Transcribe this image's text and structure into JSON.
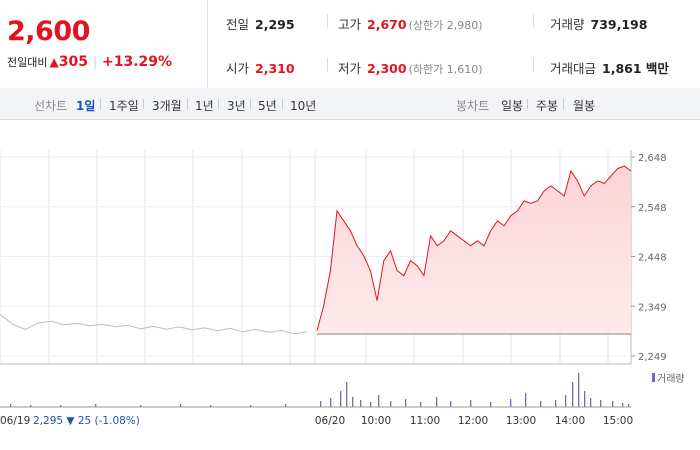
{
  "summary": {
    "price": "2,600",
    "change_label": "전일대비",
    "change_arrow": "▲",
    "change_value": "305",
    "change_pct": "+13.29%",
    "prev_close": {
      "label": "전일",
      "value": "2,295"
    },
    "high": {
      "label": "고가",
      "value": "2,670",
      "limit": "(상한가 2,980)"
    },
    "volume": {
      "label": "거래량",
      "value": "739,198"
    },
    "open": {
      "label": "시가",
      "value": "2,310"
    },
    "low": {
      "label": "저가",
      "value": "2,300",
      "limit": "(하한가 1,610)"
    },
    "amount": {
      "label": "거래대금",
      "value": "1,861 백만"
    }
  },
  "tabs": {
    "line_label": "선차트",
    "line_tabs": [
      "1일",
      "1주일",
      "3개월",
      "1년",
      "3년",
      "5년",
      "10년"
    ],
    "active": "1일",
    "candle_label": "봉차트",
    "candle_tabs": [
      "일봉",
      "주봉",
      "월봉"
    ]
  },
  "legend": {
    "volume": "거래량"
  },
  "prev_day": {
    "date": "06/19",
    "close": "2,295",
    "arrow": "▼",
    "change": "25",
    "pct": "(-1.08%)"
  },
  "chart_data": {
    "type": "line",
    "y_ticks": [
      "2,648",
      "2,548",
      "2,448",
      "2,349",
      "2,249"
    ],
    "ylim": [
      2249,
      2648
    ],
    "x_labels": [
      "06/19",
      "06/20",
      "10:00",
      "11:00",
      "12:00",
      "13:00",
      "14:00",
      "15:00"
    ],
    "series": [
      {
        "values": [
          2330,
          2315,
          2300,
          2318,
          2316,
          2314,
          2312,
          2312,
          2310,
          2310,
          2308,
          2306,
          2306,
          2305,
          2305,
          2304,
          2303,
          2302,
          2302,
          2300,
          2300,
          2299,
          2298,
          2296,
          2295
        ]
      },
      {
        "values": [
          2300,
          2350,
          2420,
          2540,
          2520,
          2500,
          2470,
          2450,
          2420,
          2360,
          2440,
          2460,
          2420,
          2410,
          2440,
          2430,
          2410,
          2490,
          2470,
          2480,
          2500,
          2490,
          2480,
          2470,
          2480,
          2470,
          2500,
          2520,
          2510,
          2530,
          2540,
          2560,
          2555,
          2560,
          2580,
          2590,
          2580,
          2570,
          2620,
          2600,
          2570,
          2590,
          2600,
          2595,
          2610,
          2625,
          2630,
          2620
        ]
      }
    ]
  },
  "colors": {
    "up": "#e3141f",
    "down": "#1a55b5",
    "grid": "#e6e6e6",
    "prev_line": "#bdbdbd",
    "volume": "#7a67b5"
  }
}
